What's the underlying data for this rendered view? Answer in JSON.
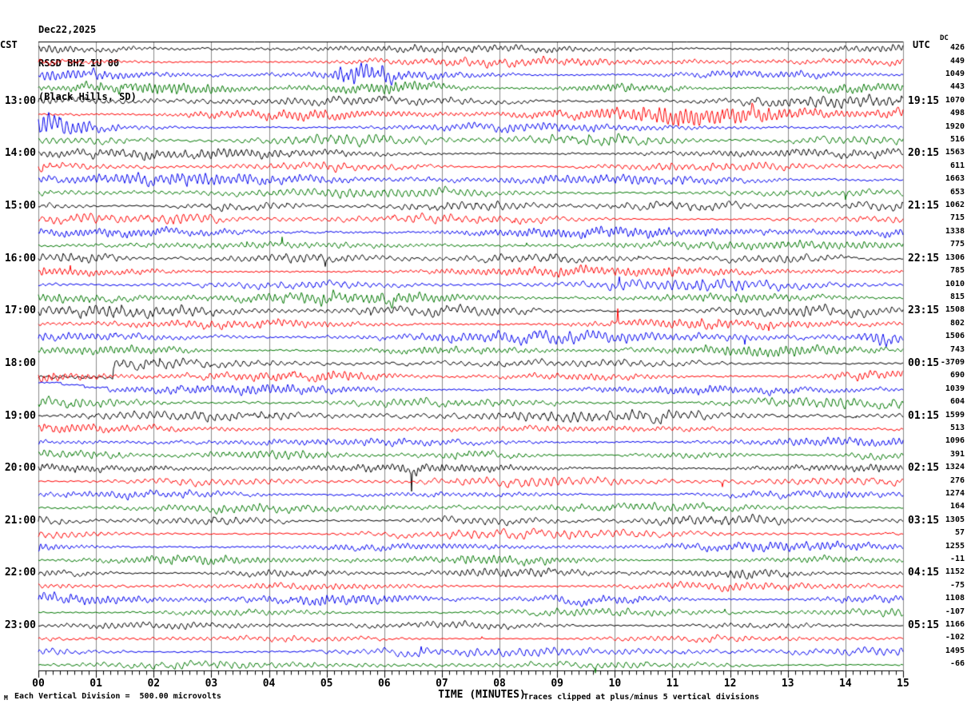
{
  "header": {
    "date": "Dec22,2025",
    "station": "RSSD BHZ IU 00",
    "location": "(Black Hills, SD)"
  },
  "axes": {
    "left_tz": "CST",
    "right_tz": "UTC",
    "dc_header": "DC",
    "x_title": "TIME (MINUTES)"
  },
  "footer": {
    "watermark": "M",
    "scale_note": "Each Vertical Division =  500.00 microvolts",
    "clip_note": "Traces clipped at plus/minus 5 vertical divisions"
  },
  "colors": {
    "black": "#000000",
    "red": "#ff0000",
    "blue": "#0000ee",
    "green": "#007700",
    "grid": "#8a8a8a",
    "axis": "#000000",
    "background": "#ffffff"
  },
  "chart_data": {
    "type": "line",
    "subtype": "helicorder-seismogram",
    "title": "RSSD BHZ IU 00 (Black Hills, SD) Dec22,2025",
    "x_axis": {
      "label": "TIME (MINUTES)",
      "min": 0,
      "max": 15,
      "major_tick_every_min": 1,
      "minor_subdivisions_per_minute": 8,
      "tick_labels": [
        "00",
        "01",
        "02",
        "03",
        "04",
        "05",
        "06",
        "07",
        "08",
        "09",
        "10",
        "11",
        "12",
        "13",
        "14",
        "15"
      ]
    },
    "row_duration_minutes": 15,
    "rows_per_hour": 4,
    "trace_color_cycle": [
      "black",
      "red",
      "blue",
      "green"
    ],
    "left_time_zone": "CST",
    "right_time_zone": "UTC",
    "left_hour_labels": [
      "13:00",
      "14:00",
      "15:00",
      "16:00",
      "17:00",
      "18:00",
      "19:00",
      "20:00",
      "21:00",
      "22:00",
      "23:00"
    ],
    "right_utc_labels": [
      "19:15",
      "20:15",
      "21:15",
      "22:15",
      "23:15",
      "00:15",
      "01:15",
      "02:15",
      "03:15",
      "04:15",
      "05:15"
    ],
    "scale_microvolts_per_division": 500.0,
    "clip_divisions": 5,
    "grid": true,
    "rows": [
      {
        "cst": "12:00",
        "color": "black",
        "dc": "426"
      },
      {
        "cst": "12:15",
        "color": "red",
        "dc": "449"
      },
      {
        "cst": "12:30",
        "color": "blue",
        "dc": "1049",
        "bursts": [
          [
            5.0,
            6.3,
            2.3,
            "plateau"
          ]
        ]
      },
      {
        "cst": "12:45",
        "color": "green",
        "dc": "443"
      },
      {
        "cst": "13:00",
        "color": "black",
        "dc": "1070",
        "left": "13:00",
        "right": "19:15"
      },
      {
        "cst": "13:15",
        "color": "red",
        "dc": "498",
        "bursts": [
          [
            9.8,
            15,
            3.0,
            "ramp"
          ]
        ]
      },
      {
        "cst": "13:30",
        "color": "blue",
        "dc": "1920",
        "bursts": [
          [
            0,
            1.7,
            3.4,
            "decay"
          ]
        ]
      },
      {
        "cst": "13:45",
        "color": "green",
        "dc": "516"
      },
      {
        "cst": "14:00",
        "color": "black",
        "dc": "1563",
        "left": "14:00",
        "right": "20:15"
      },
      {
        "cst": "14:15",
        "color": "red",
        "dc": "611"
      },
      {
        "cst": "14:30",
        "color": "blue",
        "dc": "1663"
      },
      {
        "cst": "14:45",
        "color": "green",
        "dc": "653"
      },
      {
        "cst": "15:00",
        "color": "black",
        "dc": "1062",
        "left": "15:00",
        "right": "21:15"
      },
      {
        "cst": "15:15",
        "color": "red",
        "dc": "715",
        "bursts": [
          [
            2.1,
            3.3,
            1.9,
            "plateau"
          ]
        ]
      },
      {
        "cst": "15:30",
        "color": "blue",
        "dc": "1338"
      },
      {
        "cst": "15:45",
        "color": "green",
        "dc": "775"
      },
      {
        "cst": "16:00",
        "color": "black",
        "dc": "1306",
        "left": "16:00",
        "right": "22:15",
        "bursts": [
          [
            0.2,
            1.7,
            1.6,
            "plateau"
          ]
        ]
      },
      {
        "cst": "16:15",
        "color": "red",
        "dc": "785"
      },
      {
        "cst": "16:30",
        "color": "blue",
        "dc": "1010"
      },
      {
        "cst": "16:45",
        "color": "green",
        "dc": "815"
      },
      {
        "cst": "17:00",
        "color": "black",
        "dc": "1508",
        "left": "17:00",
        "right": "23:15"
      },
      {
        "cst": "17:15",
        "color": "red",
        "dc": "802"
      },
      {
        "cst": "17:30",
        "color": "blue",
        "dc": "1506",
        "bursts": [
          [
            14.1,
            15,
            2.8,
            "plateau"
          ]
        ]
      },
      {
        "cst": "17:45",
        "color": "green",
        "dc": "743"
      },
      {
        "cst": "18:00",
        "color": "black",
        "dc": "-3709",
        "left": "18:00",
        "right": "00:15",
        "step": "down"
      },
      {
        "cst": "18:15",
        "color": "red",
        "dc": "690"
      },
      {
        "cst": "18:30",
        "color": "blue",
        "dc": "1039",
        "step": "up"
      },
      {
        "cst": "18:45",
        "color": "green",
        "dc": "604"
      },
      {
        "cst": "19:00",
        "color": "black",
        "dc": "1599",
        "left": "19:00",
        "right": "01:15"
      },
      {
        "cst": "19:15",
        "color": "red",
        "dc": "513"
      },
      {
        "cst": "19:30",
        "color": "blue",
        "dc": "1096"
      },
      {
        "cst": "19:45",
        "color": "green",
        "dc": "391"
      },
      {
        "cst": "20:00",
        "color": "black",
        "dc": "1324",
        "left": "20:00",
        "right": "02:15"
      },
      {
        "cst": "20:15",
        "color": "red",
        "dc": "276"
      },
      {
        "cst": "20:30",
        "color": "blue",
        "dc": "1274"
      },
      {
        "cst": "20:45",
        "color": "green",
        "dc": "164"
      },
      {
        "cst": "21:00",
        "color": "black",
        "dc": "1305",
        "left": "21:00",
        "right": "03:15",
        "bursts": [
          [
            0,
            0.5,
            1.9,
            "decay"
          ]
        ]
      },
      {
        "cst": "21:15",
        "color": "red",
        "dc": "57"
      },
      {
        "cst": "21:30",
        "color": "blue",
        "dc": "1255",
        "bursts": [
          [
            0,
            0.5,
            1.8,
            "decay"
          ]
        ]
      },
      {
        "cst": "21:45",
        "color": "green",
        "dc": "-11"
      },
      {
        "cst": "22:00",
        "color": "black",
        "dc": "1152",
        "left": "22:00",
        "right": "04:15"
      },
      {
        "cst": "22:15",
        "color": "red",
        "dc": "-75"
      },
      {
        "cst": "22:30",
        "color": "blue",
        "dc": "1108"
      },
      {
        "cst": "22:45",
        "color": "green",
        "dc": "-107"
      },
      {
        "cst": "23:00",
        "color": "black",
        "dc": "1166",
        "left": "23:00",
        "right": "05:15"
      },
      {
        "cst": "23:15",
        "color": "red",
        "dc": "-102"
      },
      {
        "cst": "23:30",
        "color": "blue",
        "dc": "1495"
      },
      {
        "cst": "23:45",
        "color": "green",
        "dc": "-66"
      }
    ]
  }
}
